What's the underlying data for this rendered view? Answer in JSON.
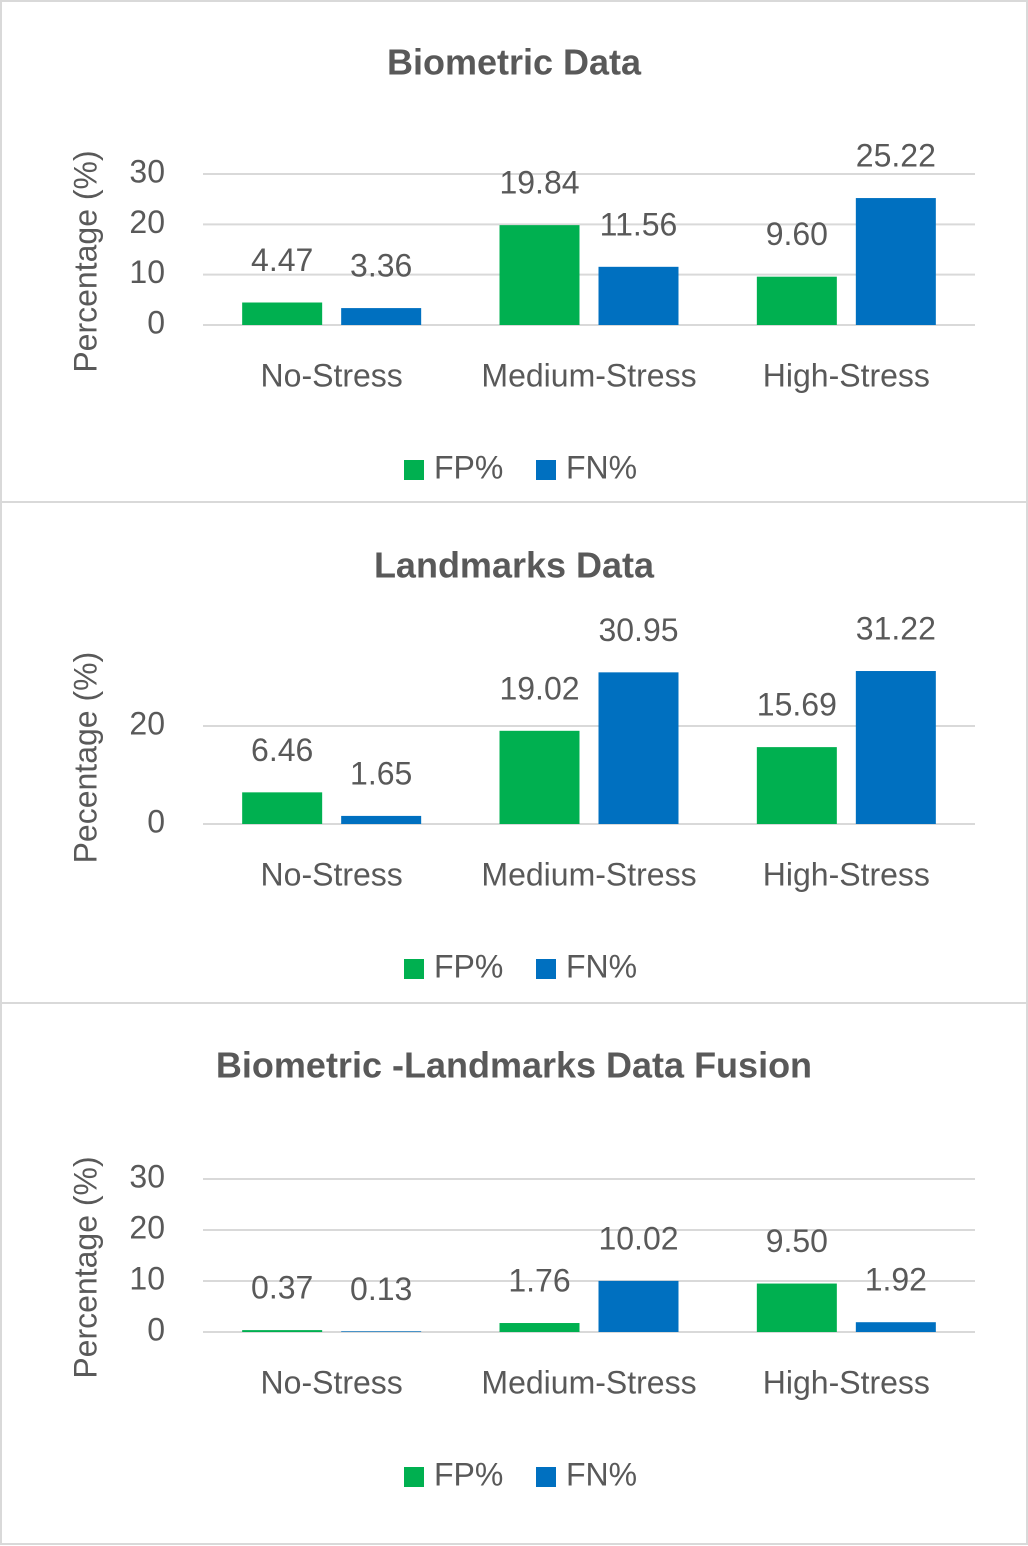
{
  "chart_data": [
    {
      "type": "bar",
      "title": "Biometric Data",
      "y_label": "Percentage (%)",
      "categories": [
        "No-Stress",
        "Medium-Stress",
        "High-Stress"
      ],
      "series": [
        {
          "name": "FP%",
          "color": "#00b050",
          "values": [
            4.47,
            19.84,
            9.6
          ],
          "value_labels": [
            "4.47",
            "19.84",
            "9.60"
          ]
        },
        {
          "name": "FN%",
          "color": "#0070c0",
          "values": [
            3.36,
            11.56,
            25.22
          ],
          "value_labels": [
            "3.36",
            "11.56",
            "25.22"
          ]
        }
      ],
      "ylim": [
        0,
        30
      ],
      "yticks": [
        0,
        10,
        20,
        30
      ],
      "grid": true,
      "legend": "bottom"
    },
    {
      "type": "bar",
      "title": "Landmarks Data",
      "y_label": "Pecentage (%)",
      "categories": [
        "No-Stress",
        "Medium-Stress",
        "High-Stress"
      ],
      "series": [
        {
          "name": "FP%",
          "color": "#00b050",
          "values": [
            6.46,
            19.02,
            15.69
          ],
          "value_labels": [
            "6.46",
            "19.02",
            "15.69"
          ]
        },
        {
          "name": "FN%",
          "color": "#0070c0",
          "values": [
            1.65,
            30.95,
            31.22
          ],
          "value_labels": [
            "1.65",
            "30.95",
            "31.22"
          ]
        }
      ],
      "ylim": [
        0,
        32
      ],
      "yticks": [
        0,
        20
      ],
      "grid": true,
      "legend": "bottom"
    },
    {
      "type": "bar",
      "title": "Biometric -Landmarks Data Fusion",
      "y_label": "Percentage (%)",
      "categories": [
        "No-Stress",
        "Medium-Stress",
        "High-Stress"
      ],
      "series": [
        {
          "name": "FP%",
          "color": "#00b050",
          "values": [
            0.37,
            1.76,
            9.5
          ],
          "value_labels": [
            "0.37",
            "1.76",
            "9.50"
          ]
        },
        {
          "name": "FN%",
          "color": "#0070c0",
          "values": [
            0.13,
            10.02,
            1.92
          ],
          "value_labels": [
            "0.13",
            "10.02",
            "1.92"
          ]
        }
      ],
      "ylim": [
        0,
        30
      ],
      "yticks": [
        0,
        10,
        20,
        30
      ],
      "grid": true,
      "legend": "bottom"
    }
  ]
}
